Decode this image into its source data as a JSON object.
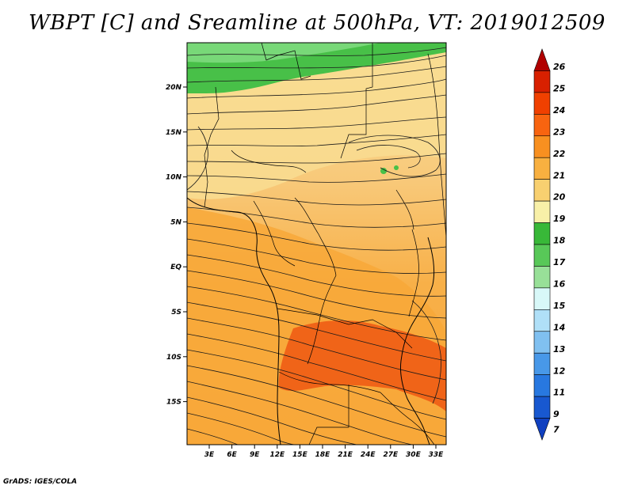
{
  "title": "WBPT [C] and Sreamline at 500hPa, VT: 2019012509",
  "credit": "GrADS: IGES/COLA",
  "map": {
    "lat_labels": [
      "20N",
      "15N",
      "10N",
      "5N",
      "EQ",
      "5S",
      "10S",
      "15S"
    ],
    "lon_labels": [
      "3E",
      "6E",
      "9E",
      "12E",
      "15E",
      "18E",
      "21E",
      "24E",
      "27E",
      "30E",
      "33E"
    ]
  },
  "colorbar": {
    "levels": [
      "26",
      "25",
      "24",
      "23",
      "22",
      "21",
      "20",
      "19",
      "18",
      "17",
      "16",
      "15",
      "14",
      "13",
      "12",
      "11",
      "9",
      "7"
    ],
    "colors": [
      "#b00000",
      "#d82000",
      "#f04000",
      "#f86410",
      "#f89020",
      "#f8b040",
      "#f8d070",
      "#f8f0a8",
      "#38b838",
      "#58c858",
      "#98e098",
      "#d8f8f8",
      "#b0e0f8",
      "#80c0f0",
      "#4898e8",
      "#2878e0",
      "#1858d0",
      "#1040c0"
    ]
  }
}
